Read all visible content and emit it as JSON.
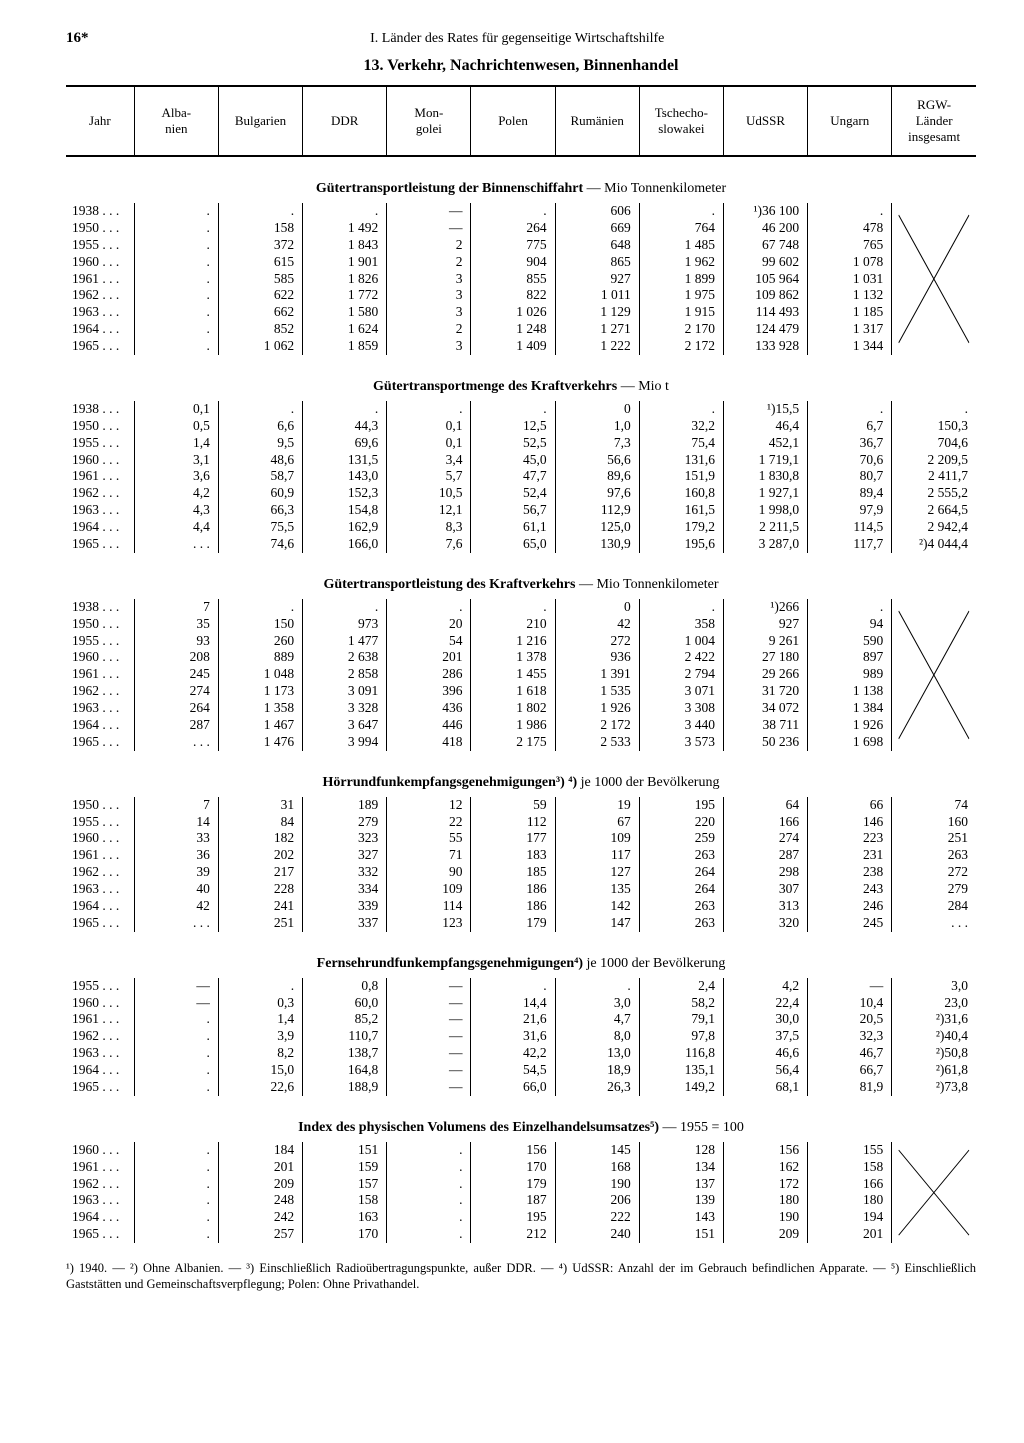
{
  "page_number": "16*",
  "running_head": "I. Länder des Rates für gegenseitige Wirtschaftshilfe",
  "title": "13. Verkehr, Nachrichtenwesen, Binnenhandel",
  "columns": [
    "Jahr",
    "Alba-\nnien",
    "Bulgarien",
    "DDR",
    "Mon-\ngolei",
    "Polen",
    "Rumänien",
    "Tschecho-\nslowakei",
    "UdSSR",
    "Ungarn",
    "RGW-\nLänder\ninsgesamt"
  ],
  "footnotes": "¹) 1940. — ²) Ohne Albanien. — ³) Einschließlich Radioübertragungspunkte, außer DDR. — ⁴) UdSSR: Anzahl der im Gebrauch befindlichen Apparate. — ⁵) Einschließlich Gaststätten und Gemeinschaftsverpflegung; Polen: Ohne Privathandel.",
  "sections": [
    {
      "title_bold": "Gütertransportleistung der Binnenschiffahrt",
      "title_rest": " — Mio Tonnenkilometer",
      "x_last": true,
      "rows": [
        [
          "1938 . . .",
          ".",
          ".",
          ".",
          "—",
          ".",
          "606",
          ".",
          "¹)36 100",
          ".",
          ""
        ],
        [
          "1950 . . .",
          ".",
          "158",
          "1 492",
          "—",
          "264",
          "669",
          "764",
          "46 200",
          "478",
          ""
        ],
        [
          "1955 . . .",
          ".",
          "372",
          "1 843",
          "2",
          "775",
          "648",
          "1 485",
          "67 748",
          "765",
          ""
        ],
        [
          "1960 . . .",
          ".",
          "615",
          "1 901",
          "2",
          "904",
          "865",
          "1 962",
          "99 602",
          "1 078",
          ""
        ],
        [
          "1961 . . .",
          ".",
          "585",
          "1 826",
          "3",
          "855",
          "927",
          "1 899",
          "105 964",
          "1 031",
          ""
        ],
        [
          "1962 . . .",
          ".",
          "622",
          "1 772",
          "3",
          "822",
          "1 011",
          "1 975",
          "109 862",
          "1 132",
          ""
        ],
        [
          "1963 . . .",
          ".",
          "662",
          "1 580",
          "3",
          "1 026",
          "1 129",
          "1 915",
          "114 493",
          "1 185",
          ""
        ],
        [
          "1964 . . .",
          ".",
          "852",
          "1 624",
          "2",
          "1 248",
          "1 271",
          "2 170",
          "124 479",
          "1 317",
          ""
        ],
        [
          "1965 . . .",
          ".",
          "1 062",
          "1 859",
          "3",
          "1 409",
          "1 222",
          "2 172",
          "133 928",
          "1 344",
          ""
        ]
      ]
    },
    {
      "title_bold": "Gütertransportmenge des Kraftverkehrs",
      "title_rest": " — Mio t",
      "x_last": false,
      "rows": [
        [
          "1938 . . .",
          "0,1",
          ".",
          ".",
          ".",
          ".",
          "0",
          ".",
          "¹)15,5",
          ".",
          "."
        ],
        [
          "1950 . . .",
          "0,5",
          "6,6",
          "44,3",
          "0,1",
          "12,5",
          "1,0",
          "32,2",
          "46,4",
          "6,7",
          "150,3"
        ],
        [
          "1955 . . .",
          "1,4",
          "9,5",
          "69,6",
          "0,1",
          "52,5",
          "7,3",
          "75,4",
          "452,1",
          "36,7",
          "704,6"
        ],
        [
          "1960 . . .",
          "3,1",
          "48,6",
          "131,5",
          "3,4",
          "45,0",
          "56,6",
          "131,6",
          "1 719,1",
          "70,6",
          "2 209,5"
        ],
        [
          "1961 . . .",
          "3,6",
          "58,7",
          "143,0",
          "5,7",
          "47,7",
          "89,6",
          "151,9",
          "1 830,8",
          "80,7",
          "2 411,7"
        ],
        [
          "1962 . . .",
          "4,2",
          "60,9",
          "152,3",
          "10,5",
          "52,4",
          "97,6",
          "160,8",
          "1 927,1",
          "89,4",
          "2 555,2"
        ],
        [
          "1963 . . .",
          "4,3",
          "66,3",
          "154,8",
          "12,1",
          "56,7",
          "112,9",
          "161,5",
          "1 998,0",
          "97,9",
          "2 664,5"
        ],
        [
          "1964 . . .",
          "4,4",
          "75,5",
          "162,9",
          "8,3",
          "61,1",
          "125,0",
          "179,2",
          "2 211,5",
          "114,5",
          "2 942,4"
        ],
        [
          "1965 . . .",
          ". . .",
          "74,6",
          "166,0",
          "7,6",
          "65,0",
          "130,9",
          "195,6",
          "3 287,0",
          "117,7",
          "²)4 044,4"
        ]
      ]
    },
    {
      "title_bold": "Gütertransportleistung des Kraftverkehrs",
      "title_rest": " — Mio Tonnenkilometer",
      "x_last": true,
      "rows": [
        [
          "1938 . . .",
          "7",
          ".",
          ".",
          ".",
          ".",
          "0",
          ".",
          "¹)266",
          ".",
          ""
        ],
        [
          "1950 . . .",
          "35",
          "150",
          "973",
          "20",
          "210",
          "42",
          "358",
          "927",
          "94",
          ""
        ],
        [
          "1955 . . .",
          "93",
          "260",
          "1 477",
          "54",
          "1 216",
          "272",
          "1 004",
          "9 261",
          "590",
          ""
        ],
        [
          "1960 . . .",
          "208",
          "889",
          "2 638",
          "201",
          "1 378",
          "936",
          "2 422",
          "27 180",
          "897",
          ""
        ],
        [
          "1961 . . .",
          "245",
          "1 048",
          "2 858",
          "286",
          "1 455",
          "1 391",
          "2 794",
          "29 266",
          "989",
          ""
        ],
        [
          "1962 . . .",
          "274",
          "1 173",
          "3 091",
          "396",
          "1 618",
          "1 535",
          "3 071",
          "31 720",
          "1 138",
          ""
        ],
        [
          "1963 . . .",
          "264",
          "1 358",
          "3 328",
          "436",
          "1 802",
          "1 926",
          "3 308",
          "34 072",
          "1 384",
          ""
        ],
        [
          "1964 . . .",
          "287",
          "1 467",
          "3 647",
          "446",
          "1 986",
          "2 172",
          "3 440",
          "38 711",
          "1 926",
          ""
        ],
        [
          "1965 . . .",
          ". . .",
          "1 476",
          "3 994",
          "418",
          "2 175",
          "2 533",
          "3 573",
          "50 236",
          "1 698",
          ""
        ]
      ]
    },
    {
      "title_bold": "Hörrundfunkempfangsgenehmigungen³) ⁴)",
      "title_rest": " je 1000 der Bevölkerung",
      "x_last": false,
      "rows": [
        [
          "1950 . . .",
          "7",
          "31",
          "189",
          "12",
          "59",
          "19",
          "195",
          "64",
          "66",
          "74"
        ],
        [
          "1955 . . .",
          "14",
          "84",
          "279",
          "22",
          "112",
          "67",
          "220",
          "166",
          "146",
          "160"
        ],
        [
          "1960 . . .",
          "33",
          "182",
          "323",
          "55",
          "177",
          "109",
          "259",
          "274",
          "223",
          "251"
        ],
        [
          "1961 . . .",
          "36",
          "202",
          "327",
          "71",
          "183",
          "117",
          "263",
          "287",
          "231",
          "263"
        ],
        [
          "1962 . . .",
          "39",
          "217",
          "332",
          "90",
          "185",
          "127",
          "264",
          "298",
          "238",
          "272"
        ],
        [
          "1963 . . .",
          "40",
          "228",
          "334",
          "109",
          "186",
          "135",
          "264",
          "307",
          "243",
          "279"
        ],
        [
          "1964 . . .",
          "42",
          "241",
          "339",
          "114",
          "186",
          "142",
          "263",
          "313",
          "246",
          "284"
        ],
        [
          "1965 . . .",
          ". . .",
          "251",
          "337",
          "123",
          "179",
          "147",
          "263",
          "320",
          "245",
          ". . ."
        ]
      ]
    },
    {
      "title_bold": "Fernsehrundfunkempfangsgenehmigungen⁴)",
      "title_rest": " je 1000 der Bevölkerung",
      "x_last": false,
      "rows": [
        [
          "1955 . . .",
          "—",
          ".",
          "0,8",
          "—",
          ".",
          ".",
          "2,4",
          "4,2",
          "—",
          "3,0"
        ],
        [
          "1960 . . .",
          "—",
          "0,3",
          "60,0",
          "—",
          "14,4",
          "3,0",
          "58,2",
          "22,4",
          "10,4",
          "23,0"
        ],
        [
          "1961 . . .",
          ".",
          "1,4",
          "85,2",
          "—",
          "21,6",
          "4,7",
          "79,1",
          "30,0",
          "20,5",
          "²)31,6"
        ],
        [
          "1962 . . .",
          ".",
          "3,9",
          "110,7",
          "—",
          "31,6",
          "8,0",
          "97,8",
          "37,5",
          "32,3",
          "²)40,4"
        ],
        [
          "1963 . . .",
          ".",
          "8,2",
          "138,7",
          "—",
          "42,2",
          "13,0",
          "116,8",
          "46,6",
          "46,7",
          "²)50,8"
        ],
        [
          "1964 . . .",
          ".",
          "15,0",
          "164,8",
          "—",
          "54,5",
          "18,9",
          "135,1",
          "56,4",
          "66,7",
          "²)61,8"
        ],
        [
          "1965 . . .",
          ".",
          "22,6",
          "188,9",
          "—",
          "66,0",
          "26,3",
          "149,2",
          "68,1",
          "81,9",
          "²)73,8"
        ]
      ]
    },
    {
      "title_bold": "Index des physischen Volumens des Einzelhandelsumsatzes⁵)",
      "title_rest": " — 1955 = 100",
      "x_last": true,
      "rows": [
        [
          "1960 . . .",
          ".",
          "184",
          "151",
          ".",
          "156",
          "145",
          "128",
          "156",
          "155",
          ""
        ],
        [
          "1961 . . .",
          ".",
          "201",
          "159",
          ".",
          "170",
          "168",
          "134",
          "162",
          "158",
          ""
        ],
        [
          "1962 . . .",
          ".",
          "209",
          "157",
          ".",
          "179",
          "190",
          "137",
          "172",
          "166",
          ""
        ],
        [
          "1963 . . .",
          ".",
          "248",
          "158",
          ".",
          "187",
          "206",
          "139",
          "180",
          "180",
          ""
        ],
        [
          "1964 . . .",
          ".",
          "242",
          "163",
          ".",
          "195",
          "222",
          "143",
          "190",
          "194",
          ""
        ],
        [
          "1965 . . .",
          ".",
          "257",
          "170",
          ".",
          "212",
          "240",
          "151",
          "209",
          "201",
          ""
        ]
      ]
    }
  ]
}
